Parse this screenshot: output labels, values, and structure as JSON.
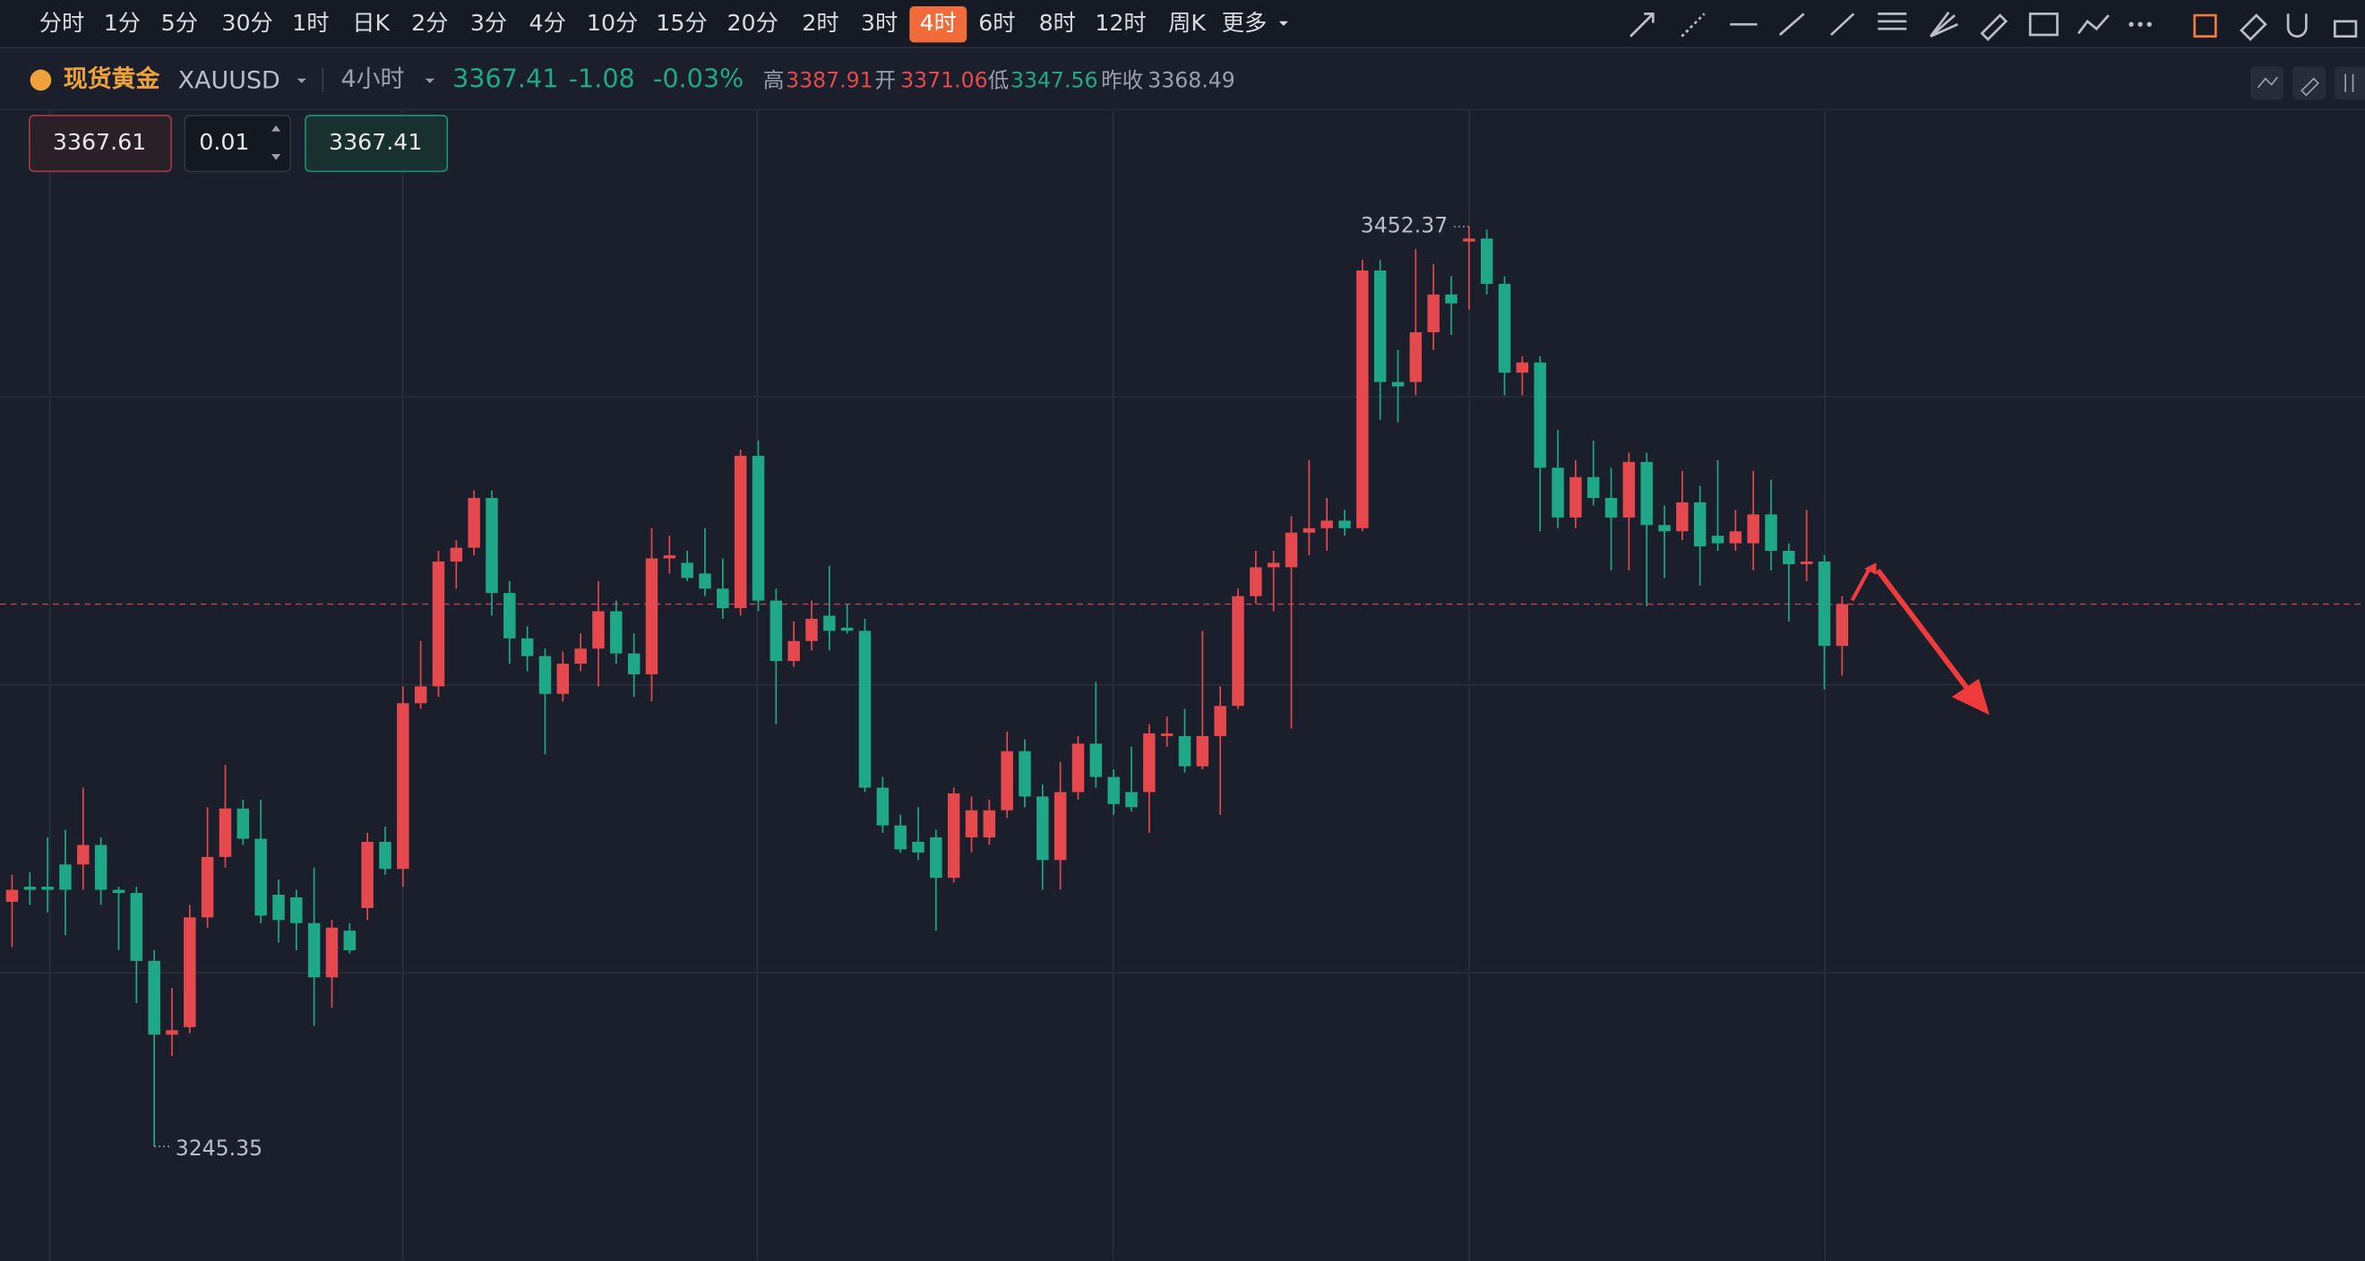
{
  "toolbar": {
    "timeframes": [
      {
        "label": "分时"
      },
      {
        "label": "1分"
      },
      {
        "label": "5分"
      },
      {
        "label": "30分"
      },
      {
        "label": "1时"
      },
      {
        "label": "日K"
      },
      {
        "label": "2分"
      },
      {
        "label": "3分"
      },
      {
        "label": "4分"
      },
      {
        "label": "10分"
      },
      {
        "label": "15分"
      },
      {
        "label": "20分"
      },
      {
        "label": "2时"
      },
      {
        "label": "3时"
      },
      {
        "label": "4时",
        "active": true
      },
      {
        "label": "6时"
      },
      {
        "label": "8时"
      },
      {
        "label": "12时"
      },
      {
        "label": "周K"
      },
      {
        "label": "更多"
      }
    ]
  },
  "quote": {
    "name": "现货黄金",
    "symbol": "XAUUSD",
    "interval": "4小时",
    "last": "3367.41",
    "change": "-1.08",
    "change_pct": "-0.03%",
    "stats": [
      {
        "label": "高",
        "value": "3387.91",
        "color": "#e5484d"
      },
      {
        "label": "开",
        "value": "3371.06",
        "color": "#e5484d"
      },
      {
        "label": "低",
        "value": "3347.56",
        "color": "#1fa888"
      },
      {
        "label": "昨收",
        "value": "3368.49",
        "color": "#9aa0ab"
      }
    ]
  },
  "order": {
    "ask": "3367.61",
    "quantity": "0.01",
    "bid": "3367.41"
  },
  "chart_data": {
    "type": "candlestick",
    "up_color": "#e5484d",
    "down_color": "#1fa888",
    "ylim": [
      3219.6,
      3478.9
    ],
    "open": [
      3300.4,
      3303.8,
      3303.8,
      3308.8,
      3308.8,
      3313.2,
      3303.1,
      3302.4,
      3287.1,
      3270.5,
      3272.2,
      3296.9,
      3310.5,
      3321.4,
      3314.6,
      3302.0,
      3301.4,
      3295.6,
      3283.4,
      3293.9,
      3299.0,
      3313.9,
      3307.8,
      3345.1,
      3348.9,
      3377.0,
      3380.1,
      3391.3,
      3369.9,
      3359.7,
      3355.7,
      3347.2,
      3354.0,
      3357.4,
      3365.8,
      3356.3,
      3351.6,
      3377.7,
      3376.7,
      3374.3,
      3370.9,
      3366.5,
      3400.8,
      3368.2,
      3354.6,
      3359.1,
      3364.8,
      3362.1,
      3361.4,
      3326.1,
      3317.6,
      3313.9,
      3314.9,
      3305.8,
      3314.9,
      3314.9,
      3321.0,
      3334.3,
      3324.1,
      3309.8,
      3325.1,
      3336.0,
      3328.5,
      3325.1,
      3325.1,
      3337.7,
      3337.7,
      3330.9,
      3337.7,
      3344.5,
      3369.2,
      3375.7,
      3375.7,
      3383.5,
      3384.5,
      3386.2,
      3384.5,
      3442.5,
      3417.4,
      3417.4,
      3428.6,
      3437.1,
      3449.0,
      3449.7,
      3439.5,
      3419.5,
      3421.8,
      3398.1,
      3386.9,
      3396.0,
      3391.3,
      3386.9,
      3399.4,
      3385.2,
      3383.8,
      3390.3,
      3382.8,
      3381.1,
      3381.1,
      3387.6,
      3379.4,
      3376.4,
      3377.0,
      3358.0
    ],
    "close": [
      3303.1,
      3303.1,
      3303.1,
      3303.1,
      3313.2,
      3303.1,
      3302.4,
      3287.1,
      3270.5,
      3271.5,
      3296.9,
      3310.5,
      3321.4,
      3314.6,
      3297.3,
      3296.3,
      3295.6,
      3283.4,
      3294.6,
      3289.5,
      3313.9,
      3307.8,
      3345.1,
      3348.9,
      3377.0,
      3380.1,
      3391.3,
      3369.9,
      3359.7,
      3355.7,
      3347.2,
      3354.0,
      3357.4,
      3365.8,
      3356.3,
      3351.6,
      3377.7,
      3378.4,
      3373.3,
      3370.9,
      3366.5,
      3400.8,
      3368.2,
      3354.6,
      3359.1,
      3364.1,
      3361.4,
      3361.4,
      3326.1,
      3317.6,
      3312.2,
      3311.5,
      3305.8,
      3324.8,
      3321.0,
      3321.0,
      3334.3,
      3324.1,
      3309.8,
      3325.1,
      3336.0,
      3328.5,
      3322.4,
      3321.7,
      3338.3,
      3338.3,
      3330.9,
      3337.7,
      3344.5,
      3369.2,
      3375.7,
      3376.7,
      3383.5,
      3384.5,
      3386.2,
      3384.5,
      3442.5,
      3417.4,
      3416.4,
      3428.6,
      3437.1,
      3435.1,
      3449.7,
      3439.5,
      3419.5,
      3421.8,
      3398.1,
      3386.9,
      3396.0,
      3391.3,
      3386.9,
      3399.4,
      3385.2,
      3383.8,
      3390.3,
      3380.4,
      3381.1,
      3383.8,
      3387.6,
      3379.4,
      3376.4,
      3377.0,
      3358.0,
      3367.41
    ],
    "high": [
      3306.5,
      3307.1,
      3314.9,
      3316.6,
      3326.1,
      3314.9,
      3303.8,
      3303.8,
      3289.5,
      3281.0,
      3299.7,
      3321.7,
      3331.2,
      3323.4,
      3323.4,
      3305.4,
      3303.1,
      3308.1,
      3296.3,
      3295.6,
      3315.9,
      3317.3,
      3348.9,
      3359.1,
      3379.4,
      3381.8,
      3393.0,
      3393.0,
      3372.6,
      3362.4,
      3357.4,
      3356.7,
      3360.8,
      3372.6,
      3368.2,
      3360.8,
      3384.5,
      3382.8,
      3379.4,
      3384.5,
      3377.7,
      3402.2,
      3404.2,
      3370.9,
      3363.5,
      3368.2,
      3376.0,
      3367.5,
      3364.1,
      3328.5,
      3320.0,
      3321.7,
      3316.6,
      3326.1,
      3324.1,
      3323.4,
      3338.7,
      3337.0,
      3326.8,
      3331.9,
      3337.7,
      3349.9,
      3330.2,
      3335.3,
      3340.4,
      3342.1,
      3343.8,
      3361.4,
      3348.9,
      3370.9,
      3379.4,
      3379.4,
      3387.2,
      3399.8,
      3391.3,
      3388.6,
      3444.9,
      3444.9,
      3424.6,
      3447.3,
      3443.9,
      3441.2,
      3452.37,
      3451.7,
      3441.2,
      3423.2,
      3423.2,
      3406.6,
      3399.8,
      3404.2,
      3398.1,
      3401.5,
      3401.5,
      3389.6,
      3397.4,
      3394.0,
      3399.8,
      3388.6,
      3397.4,
      3395.4,
      3381.1,
      3388.6,
      3378.4,
      3369.2
    ],
    "low": [
      3290.2,
      3299.7,
      3298.0,
      3292.9,
      3303.1,
      3299.7,
      3289.5,
      3277.6,
      3245.35,
      3265.7,
      3270.8,
      3294.6,
      3308.1,
      3313.2,
      3295.6,
      3291.2,
      3289.5,
      3272.5,
      3276.6,
      3288.8,
      3296.3,
      3306.5,
      3303.8,
      3343.8,
      3346.5,
      3370.9,
      3378.4,
      3364.8,
      3354.0,
      3352.3,
      3333.6,
      3345.5,
      3352.3,
      3348.9,
      3354.0,
      3346.5,
      3345.5,
      3374.3,
      3372.6,
      3369.2,
      3364.1,
      3364.8,
      3365.8,
      3340.4,
      3353.3,
      3357.0,
      3357.0,
      3360.8,
      3325.1,
      3315.9,
      3311.5,
      3309.8,
      3293.9,
      3304.8,
      3311.5,
      3313.2,
      3319.3,
      3321.7,
      3303.1,
      3303.1,
      3323.4,
      3326.1,
      3320.0,
      3320.7,
      3315.9,
      3335.3,
      3329.5,
      3330.2,
      3320.0,
      3343.8,
      3367.5,
      3365.8,
      3339.4,
      3378.4,
      3379.4,
      3382.8,
      3383.8,
      3408.9,
      3408.3,
      3414.4,
      3424.6,
      3428.0,
      3433.7,
      3437.1,
      3414.4,
      3414.4,
      3383.8,
      3384.5,
      3384.5,
      3389.6,
      3375.0,
      3375.0,
      3366.9,
      3373.3,
      3381.8,
      3371.6,
      3379.4,
      3379.4,
      3375.0,
      3375.0,
      3363.5,
      3372.6,
      3348.2,
      3351.3
    ]
  }
}
